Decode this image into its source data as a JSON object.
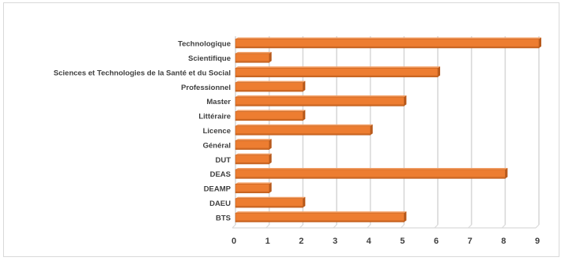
{
  "chart_data": {
    "type": "bar",
    "orientation": "horizontal",
    "categories": [
      "Technologique",
      "Scientifique",
      "Sciences et Technologies de la Santé et du Social",
      "Professionnel",
      "Master",
      "Littéraire",
      "Licence",
      "Général",
      "DUT",
      "DEAS",
      "DEAMP",
      "DAEU",
      "BTS"
    ],
    "values": [
      9,
      1,
      6,
      2,
      5,
      2,
      4,
      1,
      1,
      8,
      1,
      2,
      5
    ],
    "x_ticks": [
      "0",
      "1",
      "2",
      "3",
      "4",
      "5",
      "6",
      "7",
      "8",
      "9"
    ],
    "xlim": [
      0,
      9
    ],
    "grid": true,
    "bar_color": "#ed7d31",
    "bar_shadow_color": "#b85a1c",
    "legend": "none"
  }
}
